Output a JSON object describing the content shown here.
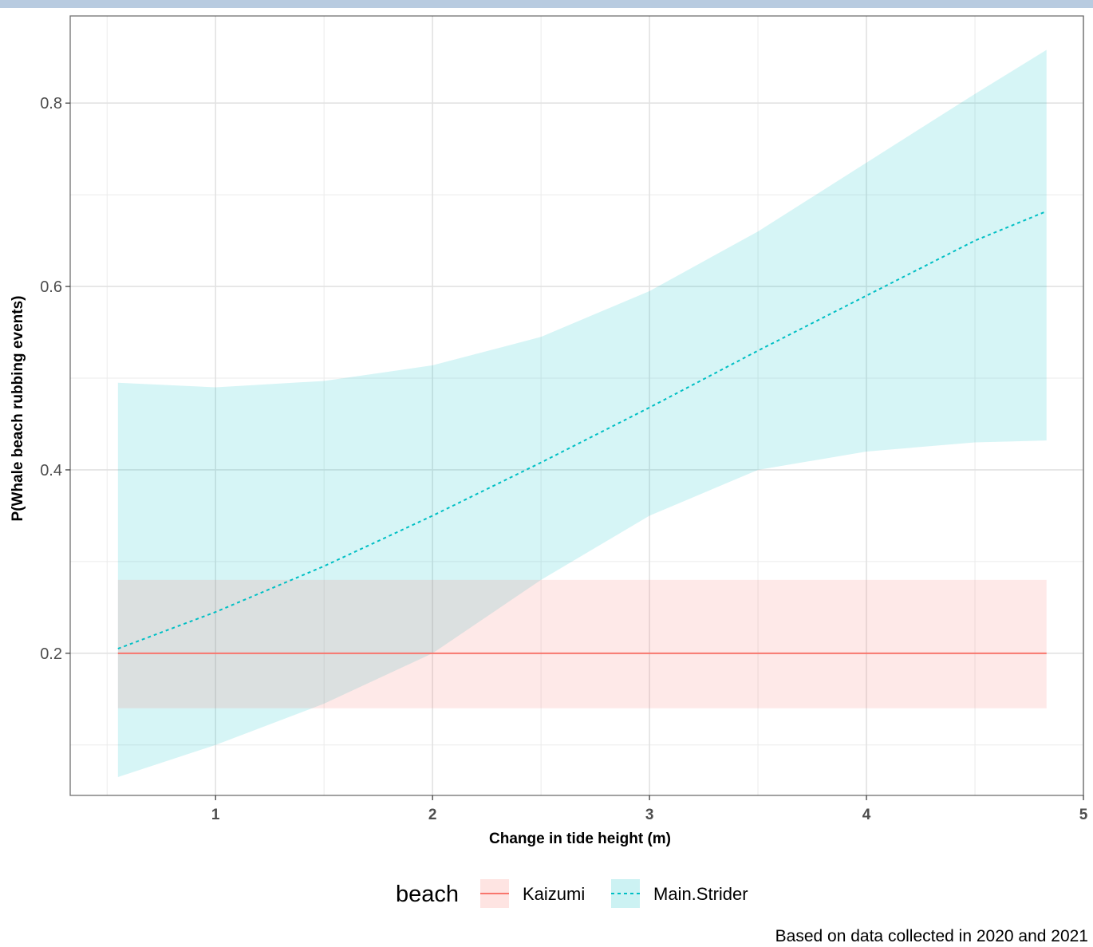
{
  "chart_data": {
    "type": "line",
    "title": "",
    "xlabel": "Change in tide height (m)",
    "ylabel": "P(Whale beach rubbing events)",
    "caption": "Based on data collected in 2020 and 2021",
    "xlim": [
      0.33,
      5.0
    ],
    "ylim": [
      0.045,
      0.895
    ],
    "x_ticks": [
      {
        "value": 1,
        "label": "1"
      },
      {
        "value": 2,
        "label": "2"
      },
      {
        "value": 3,
        "label": "3"
      },
      {
        "value": 4,
        "label": "4"
      },
      {
        "value": 5,
        "label": "5"
      }
    ],
    "y_ticks": [
      {
        "value": 0.2,
        "label": "0.2"
      },
      {
        "value": 0.4,
        "label": "0.4"
      },
      {
        "value": 0.6,
        "label": "0.6"
      },
      {
        "value": 0.8,
        "label": "0.8"
      }
    ],
    "y_minor_gridlines": [
      0.1,
      0.3,
      0.5,
      0.7
    ],
    "x_minor_gridlines": [
      0.5,
      1.5,
      2.5,
      3.5,
      4.5
    ],
    "grid": true,
    "legend": {
      "title": "beach",
      "position": "bottom"
    },
    "series": [
      {
        "name": "Kaizumi",
        "color": "#F8766D",
        "line_style": "solid",
        "ribbon_color": "#F8766D",
        "points": [
          {
            "x": 0.55,
            "y": 0.2,
            "lower": 0.14,
            "upper": 0.28
          },
          {
            "x": 4.83,
            "y": 0.2,
            "lower": 0.14,
            "upper": 0.28
          }
        ]
      },
      {
        "name": "Main.Strider",
        "color": "#00BFC4",
        "line_style": "dashed",
        "ribbon_color": "#00BFC4",
        "points": [
          {
            "x": 0.55,
            "y": 0.205,
            "lower": 0.065,
            "upper": 0.495
          },
          {
            "x": 1.0,
            "y": 0.245,
            "lower": 0.1,
            "upper": 0.49
          },
          {
            "x": 1.5,
            "y": 0.295,
            "lower": 0.145,
            "upper": 0.497
          },
          {
            "x": 2.0,
            "y": 0.35,
            "lower": 0.2,
            "upper": 0.514
          },
          {
            "x": 2.5,
            "y": 0.408,
            "lower": 0.28,
            "upper": 0.545
          },
          {
            "x": 3.0,
            "y": 0.468,
            "lower": 0.35,
            "upper": 0.595
          },
          {
            "x": 3.5,
            "y": 0.53,
            "lower": 0.4,
            "upper": 0.66
          },
          {
            "x": 4.0,
            "y": 0.59,
            "lower": 0.42,
            "upper": 0.735
          },
          {
            "x": 4.5,
            "y": 0.65,
            "lower": 0.43,
            "upper": 0.81
          },
          {
            "x": 4.83,
            "y": 0.682,
            "lower": 0.432,
            "upper": 0.858
          }
        ]
      }
    ]
  }
}
